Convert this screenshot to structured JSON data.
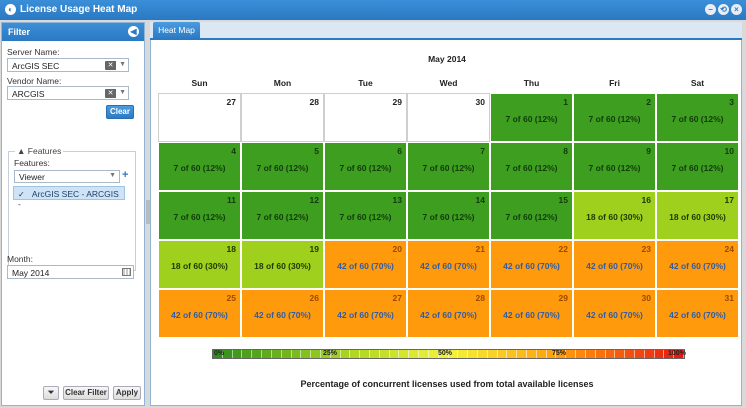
{
  "window": {
    "title": "License Usage Heat Map",
    "controls": [
      "minimize-icon",
      "restore-icon",
      "close-icon"
    ]
  },
  "filter": {
    "header": "Filter",
    "server_label": "Server Name:",
    "server_value": "ArcGIS SEC",
    "vendor_label": "Vendor Name:",
    "vendor_value": "ARCGIS",
    "clear_button": "Clear",
    "features_group": "Features",
    "features_label": "Features:",
    "features_value": "Viewer",
    "feature_item": "ArcGIS SEC - ARCGIS -",
    "month_label": "Month:",
    "month_value": "May 2014",
    "clear_filter_button": "Clear Filter",
    "apply_button": "Apply"
  },
  "tabs": [
    {
      "label": "Heat Map"
    }
  ],
  "calendar": {
    "title": "May 2014",
    "days": [
      "Sun",
      "Mon",
      "Tue",
      "Wed",
      "Thu",
      "Fri",
      "Sat"
    ],
    "weeks": [
      [
        {
          "day": "27",
          "value": "",
          "level": "empty"
        },
        {
          "day": "28",
          "value": "",
          "level": "empty"
        },
        {
          "day": "29",
          "value": "",
          "level": "empty"
        },
        {
          "day": "30",
          "value": "",
          "level": "empty"
        },
        {
          "day": "1",
          "value": "7 of 60 (12%)",
          "level": "low"
        },
        {
          "day": "2",
          "value": "7 of 60 (12%)",
          "level": "low"
        },
        {
          "day": "3",
          "value": "7 of 60 (12%)",
          "level": "low"
        }
      ],
      [
        {
          "day": "4",
          "value": "7 of 60 (12%)",
          "level": "low"
        },
        {
          "day": "5",
          "value": "7 of 60 (12%)",
          "level": "low"
        },
        {
          "day": "6",
          "value": "7 of 60 (12%)",
          "level": "low"
        },
        {
          "day": "7",
          "value": "7 of 60 (12%)",
          "level": "low"
        },
        {
          "day": "8",
          "value": "7 of 60 (12%)",
          "level": "low"
        },
        {
          "day": "9",
          "value": "7 of 60 (12%)",
          "level": "low"
        },
        {
          "day": "10",
          "value": "7 of 60 (12%)",
          "level": "low"
        }
      ],
      [
        {
          "day": "11",
          "value": "7 of 60 (12%)",
          "level": "low"
        },
        {
          "day": "12",
          "value": "7 of 60 (12%)",
          "level": "low"
        },
        {
          "day": "13",
          "value": "7 of 60 (12%)",
          "level": "low"
        },
        {
          "day": "14",
          "value": "7 of 60 (12%)",
          "level": "low"
        },
        {
          "day": "15",
          "value": "7 of 60 (12%)",
          "level": "low"
        },
        {
          "day": "16",
          "value": "18 of 60 (30%)",
          "level": "mid"
        },
        {
          "day": "17",
          "value": "18 of 60 (30%)",
          "level": "mid"
        }
      ],
      [
        {
          "day": "18",
          "value": "18 of 60 (30%)",
          "level": "mid"
        },
        {
          "day": "19",
          "value": "18 of 60 (30%)",
          "level": "mid"
        },
        {
          "day": "20",
          "value": "42 of 60 (70%)",
          "level": "high"
        },
        {
          "day": "21",
          "value": "42 of 60 (70%)",
          "level": "high"
        },
        {
          "day": "22",
          "value": "42 of 60 (70%)",
          "level": "high"
        },
        {
          "day": "23",
          "value": "42 of 60 (70%)",
          "level": "high"
        },
        {
          "day": "24",
          "value": "42 of 60 (70%)",
          "level": "high"
        }
      ],
      [
        {
          "day": "25",
          "value": "42 of 60 (70%)",
          "level": "high"
        },
        {
          "day": "26",
          "value": "42 of 60 (70%)",
          "level": "high"
        },
        {
          "day": "27",
          "value": "42 of 60 (70%)",
          "level": "high"
        },
        {
          "day": "28",
          "value": "42 of 60 (70%)",
          "level": "high"
        },
        {
          "day": "29",
          "value": "42 of 60 (70%)",
          "level": "high"
        },
        {
          "day": "30",
          "value": "42 of 60 (70%)",
          "level": "high"
        },
        {
          "day": "31",
          "value": "42 of 60 (70%)",
          "level": "high"
        }
      ]
    ]
  },
  "legend": {
    "marks": [
      "0%",
      "25%",
      "50%",
      "75%",
      "100%"
    ],
    "caption": "Percentage of concurrent licenses used from total available licenses",
    "colors": [
      "#2f8f1a",
      "#9fd01e",
      "#f4f43a",
      "#ff9a0c",
      "#e81a10"
    ]
  }
}
